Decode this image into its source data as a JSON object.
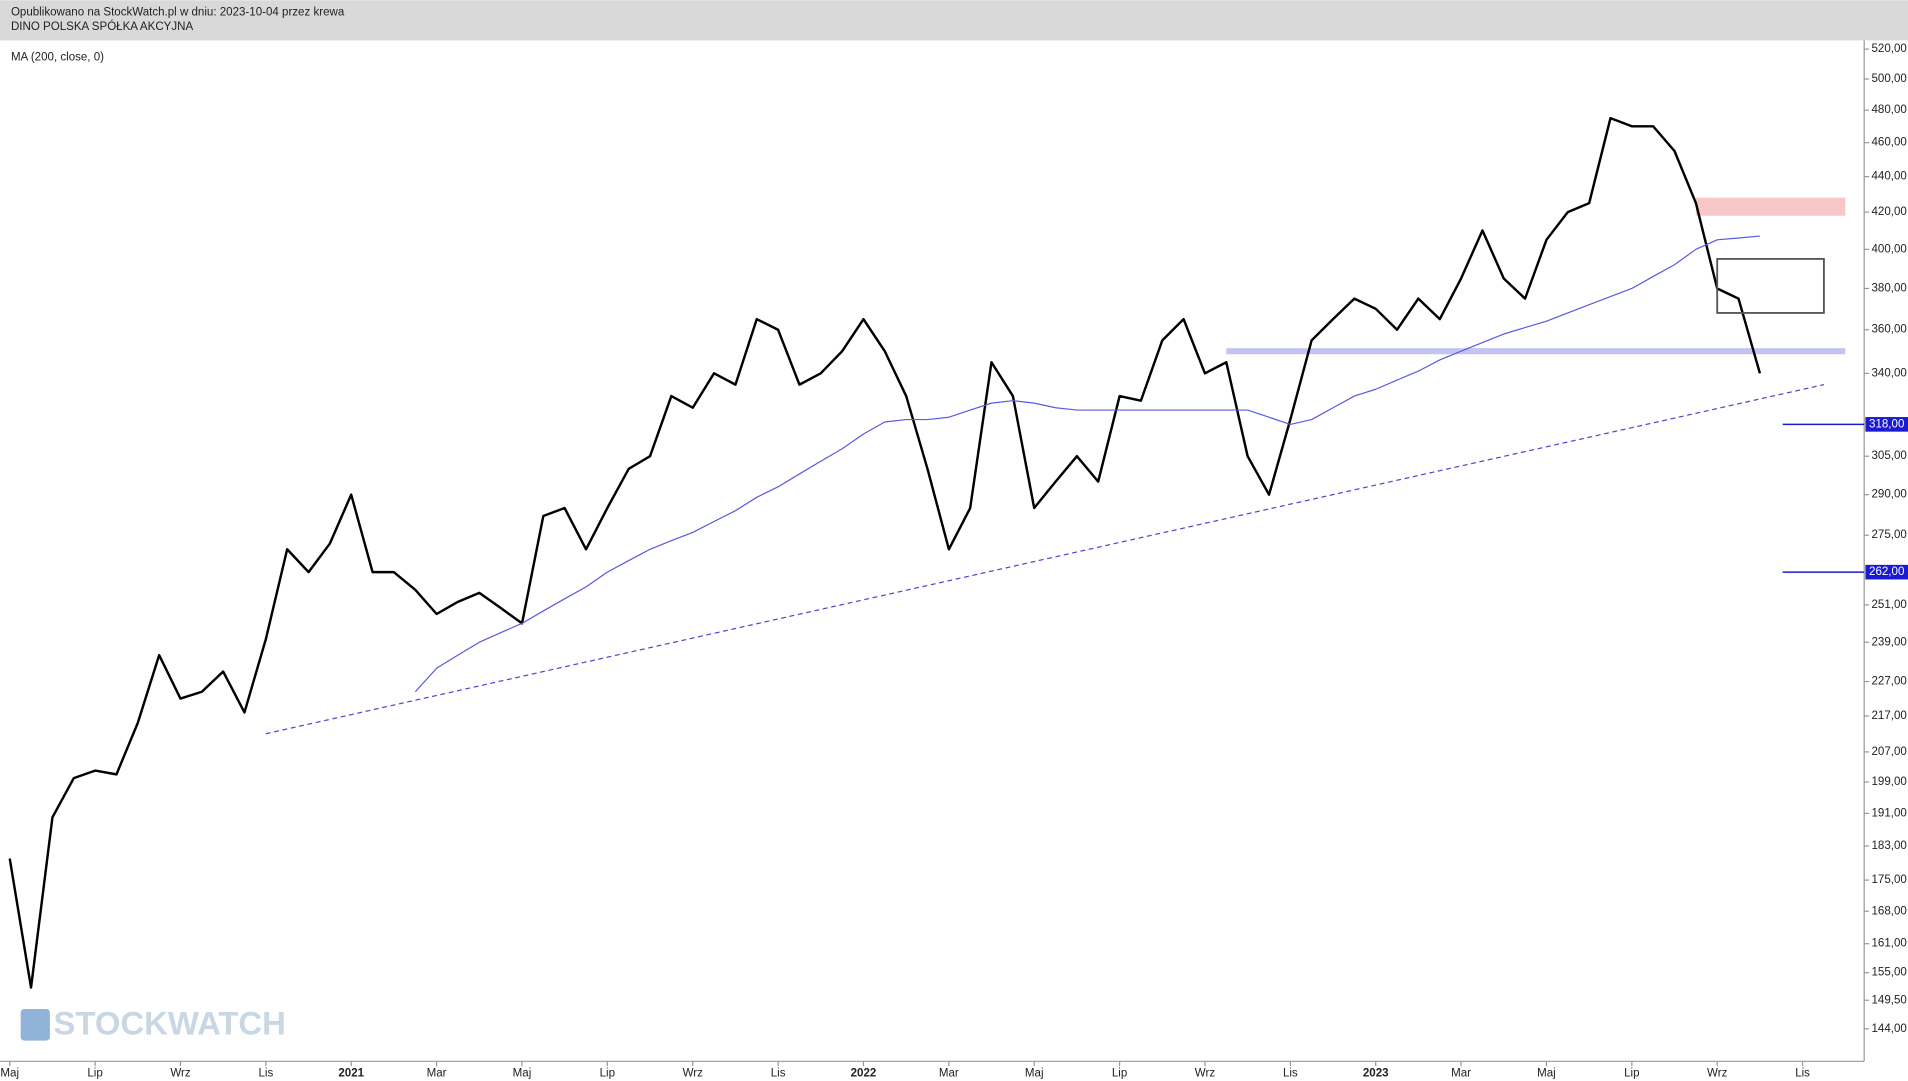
{
  "chart_data": {
    "type": "line",
    "title": "Opublikowano na StockWatch.pl w dniu: 2023-10-04 przez krewa",
    "watermark": "STOCKWATCH",
    "log_scale": true,
    "categories": [
      "Maj",
      null,
      null,
      null,
      "Lip",
      null,
      null,
      null,
      "Wrz",
      null,
      null,
      null,
      "Lis",
      null,
      null,
      null,
      "2021",
      null,
      null,
      null,
      "Mar",
      null,
      null,
      null,
      "Maj",
      null,
      null,
      null,
      "Lip",
      null,
      null,
      null,
      "Wrz",
      null,
      null,
      null,
      "Lis",
      null,
      null,
      null,
      "2022",
      null,
      null,
      null,
      "Mar",
      null,
      null,
      null,
      "Maj",
      null,
      null,
      null,
      "Lip",
      null,
      null,
      null,
      "Wrz",
      null,
      null,
      null,
      "Lis",
      null,
      null,
      null,
      "2023",
      null,
      null,
      null,
      "Mar",
      null,
      null,
      null,
      "Maj",
      null,
      null,
      null,
      "Lip",
      null,
      null,
      null,
      "Wrz",
      null,
      null,
      null,
      "Lis",
      null,
      null
    ],
    "series": [
      {
        "name": "DINO POLSKA SPÓŁKA AKCYJNA",
        "color": "#000000",
        "values": [
          180,
          152,
          190,
          200,
          202,
          201,
          215,
          235,
          222,
          224,
          230,
          218,
          240,
          270,
          262,
          272,
          290,
          262,
          262,
          256,
          248,
          252,
          255,
          250,
          245,
          282,
          285,
          270,
          285,
          300,
          305,
          330,
          325,
          340,
          335,
          365,
          360,
          335,
          340,
          350,
          365,
          350,
          330,
          300,
          270,
          285,
          345,
          330,
          285,
          295,
          305,
          295,
          330,
          328,
          355,
          365,
          340,
          345,
          305,
          290,
          320,
          355,
          365,
          375,
          370,
          360,
          375,
          365,
          385,
          410,
          385,
          375,
          405,
          420,
          425,
          475,
          470,
          470,
          455,
          425,
          380,
          375,
          340,
          null,
          null,
          null,
          null
        ]
      },
      {
        "name": "MA (200, close, 0)",
        "color": "#5a5ae0",
        "values": [
          null,
          null,
          null,
          null,
          null,
          null,
          null,
          null,
          null,
          null,
          null,
          null,
          null,
          null,
          null,
          null,
          null,
          null,
          null,
          224,
          231,
          235,
          239,
          242,
          245,
          249,
          253,
          257,
          262,
          266,
          270,
          273,
          276,
          280,
          284,
          289,
          293,
          298,
          303,
          308,
          314,
          319,
          320,
          320,
          321,
          324,
          327,
          328,
          327,
          325,
          324,
          324,
          324,
          324,
          324,
          324,
          324,
          324,
          324,
          321,
          318,
          320,
          325,
          330,
          333,
          337,
          341,
          346,
          350,
          354,
          358,
          361,
          364,
          368,
          372,
          376,
          380,
          386,
          392,
          400,
          405,
          406,
          407,
          null,
          null,
          null,
          null
        ]
      }
    ],
    "ylim": [
      138,
      526
    ],
    "yticks": [
      {
        "value": 520,
        "label": "520,00"
      },
      {
        "value": 500,
        "label": "500,00"
      },
      {
        "value": 480,
        "label": "480,00"
      },
      {
        "value": 460,
        "label": "460,00"
      },
      {
        "value": 440,
        "label": "440,00"
      },
      {
        "value": 420,
        "label": "420,00"
      },
      {
        "value": 400,
        "label": "400,00"
      },
      {
        "value": 380,
        "label": "380,00"
      },
      {
        "value": 360,
        "label": "360,00"
      },
      {
        "value": 340,
        "label": "340,00"
      },
      {
        "value": 305,
        "label": "305,00"
      },
      {
        "value": 290,
        "label": "290,00"
      },
      {
        "value": 275,
        "label": "275,00"
      },
      {
        "value": 251,
        "label": "251,00"
      },
      {
        "value": 239,
        "label": "239,00"
      },
      {
        "value": 227,
        "label": "227,00"
      },
      {
        "value": 217,
        "label": "217,00"
      },
      {
        "value": 207,
        "label": "207,00"
      },
      {
        "value": 199,
        "label": "199,00"
      },
      {
        "value": 191,
        "label": "191,00"
      },
      {
        "value": 183,
        "label": "183,00"
      },
      {
        "value": 175,
        "label": "175,00"
      },
      {
        "value": 168,
        "label": "168,00"
      },
      {
        "value": 161,
        "label": "161,00"
      },
      {
        "value": 155,
        "label": "155,00"
      },
      {
        "value": 149.5,
        "label": "149,50"
      },
      {
        "value": 144,
        "label": "144,00"
      }
    ],
    "annotations": {
      "levels": [
        {
          "value": 318,
          "label": "318,00"
        },
        {
          "value": 262,
          "label": "262,00"
        }
      ],
      "trendline": {
        "x": [
          12,
          85
        ],
        "y": [
          212,
          335
        ]
      },
      "support_band": {
        "x": [
          57,
          86
        ],
        "y": 350
      },
      "resistance_zone": {
        "x": [
          79,
          86
        ],
        "y": [
          418,
          428
        ]
      },
      "range_box": {
        "x": [
          80,
          85
        ],
        "y": [
          368,
          395
        ]
      }
    }
  }
}
